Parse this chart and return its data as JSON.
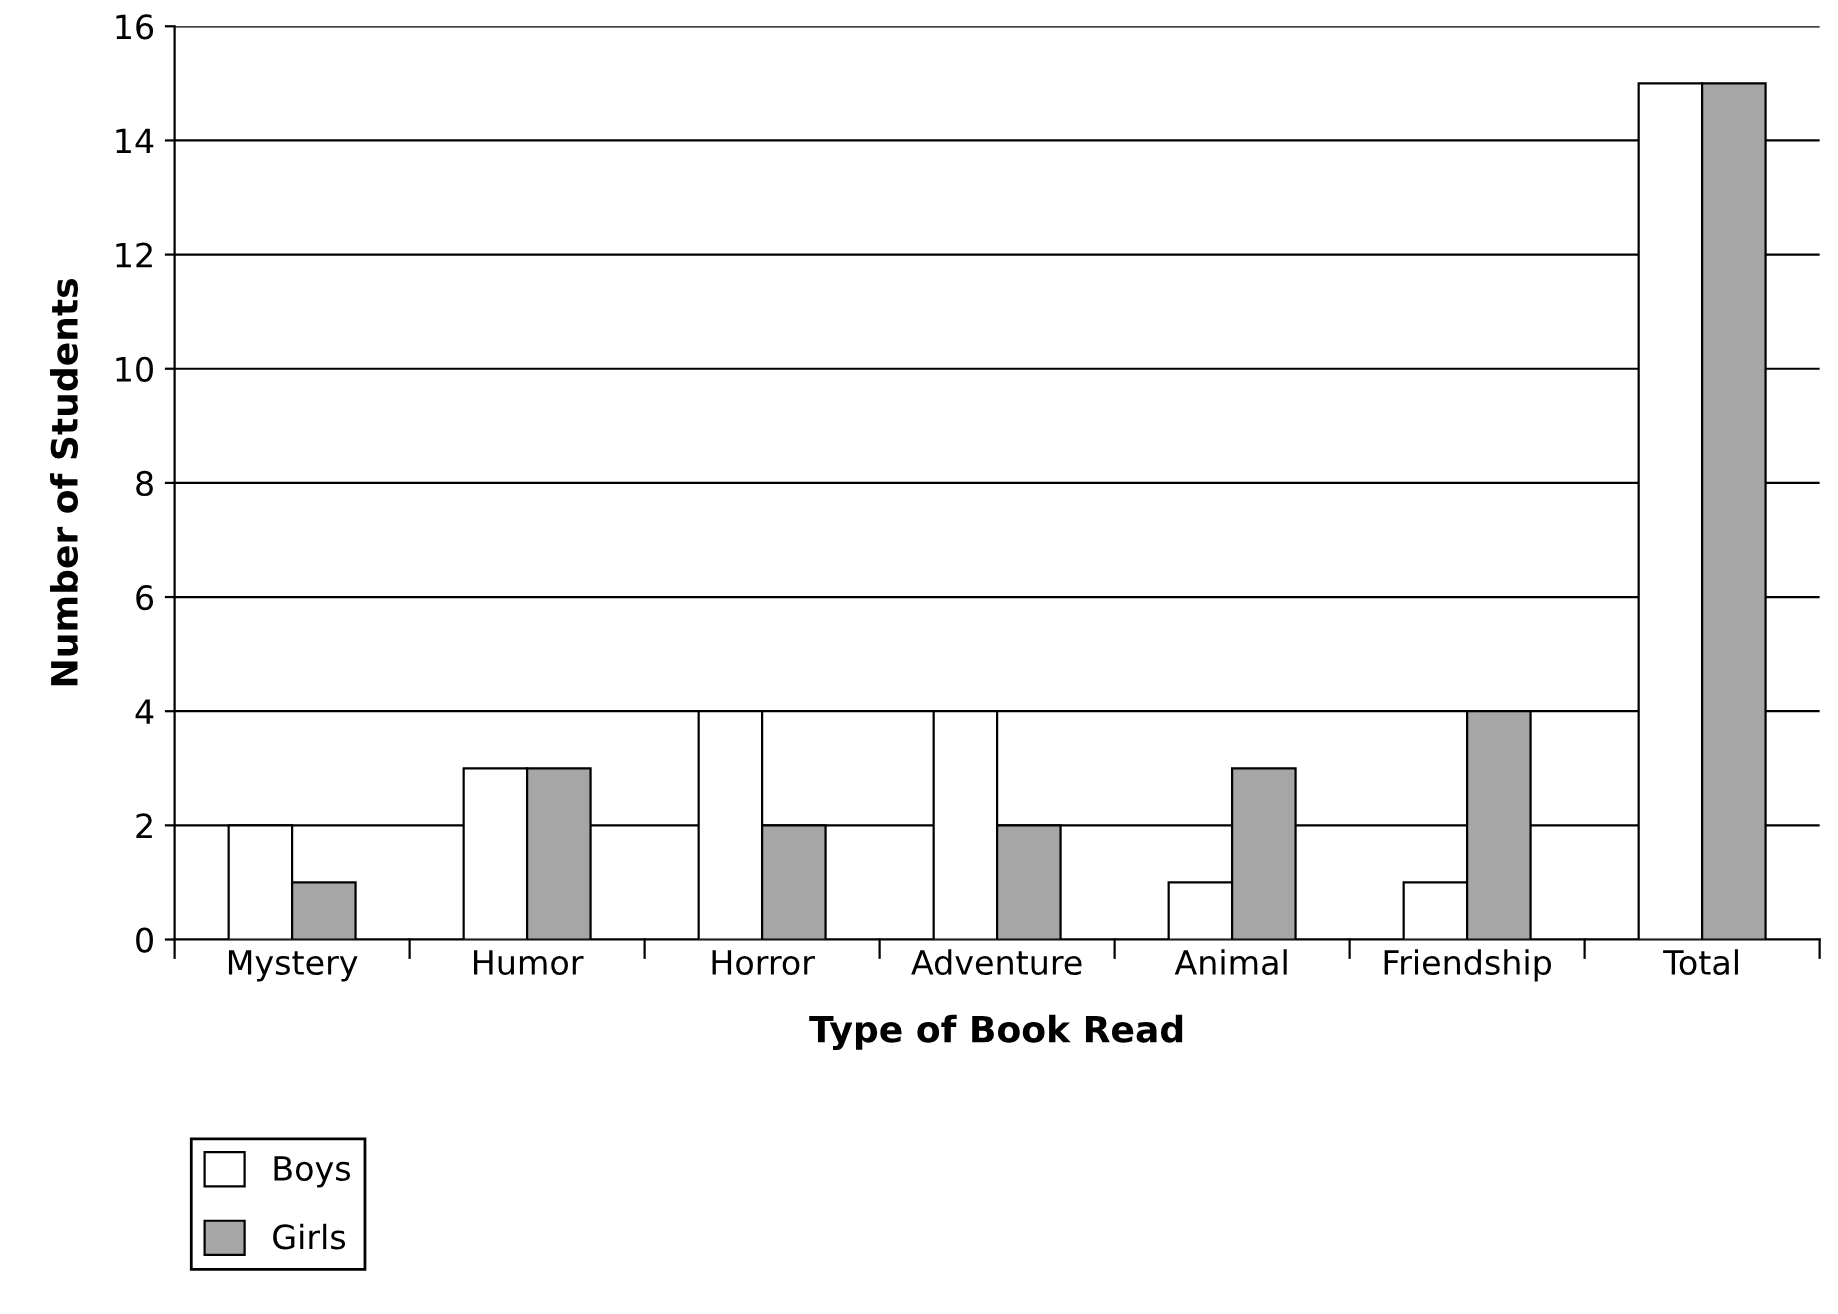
{
  "chart_data": {
    "type": "bar",
    "xlabel": "Type of Book Read",
    "ylabel": "Number of Students",
    "categories": [
      "Mystery",
      "Humor",
      "Horror",
      "Adventure",
      "Animal",
      "Friendship",
      "Total"
    ],
    "series": [
      {
        "name": "Boys",
        "color": "#ffffff",
        "values": [
          2,
          3,
          4,
          4,
          1,
          1,
          15
        ]
      },
      {
        "name": "Girls",
        "color": "#a6a6a6",
        "values": [
          1,
          3,
          2,
          2,
          3,
          4,
          15
        ]
      }
    ],
    "ylim": [
      0,
      16
    ],
    "yticks": [
      0,
      2,
      4,
      6,
      8,
      10,
      12,
      14,
      16
    ],
    "grid": "y",
    "legend": "bottom left"
  }
}
